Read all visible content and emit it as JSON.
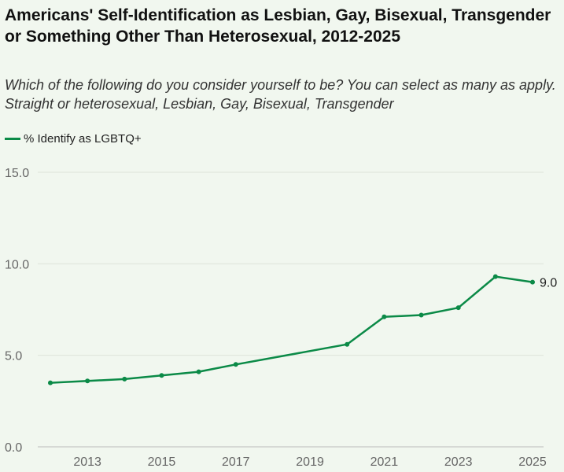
{
  "chart_data": {
    "type": "line",
    "title": "Americans' Self-Identification as Lesbian, Gay, Bisexual, Transgender or Something Other Than Heterosexual, 2012-2025",
    "subtitle": "Which of the following do you consider yourself to be? You can select as many as apply. Straight or heterosexual, Lesbian, Gay, Bisexual, Transgender",
    "xlabel": "",
    "ylabel": "",
    "ylim": [
      0,
      15
    ],
    "xlim": [
      2012,
      2025
    ],
    "yticks": [
      "0.0",
      "5.0",
      "10.0",
      "15.0"
    ],
    "ytick_values": [
      0,
      5,
      10,
      15
    ],
    "xticks": [
      "2013",
      "2015",
      "2017",
      "2019",
      "2021",
      "2023",
      "2025"
    ],
    "xtick_values": [
      2013,
      2015,
      2017,
      2019,
      2021,
      2023,
      2025
    ],
    "grid": true,
    "legend_position": "top-left",
    "series": [
      {
        "name": "% Identify as LGBTQ+",
        "color": "#0b8a47",
        "x": [
          2012,
          2013,
          2014,
          2015,
          2016,
          2017,
          2020,
          2021,
          2022,
          2023,
          2024,
          2025
        ],
        "values": [
          3.5,
          3.6,
          3.7,
          3.9,
          4.1,
          4.5,
          5.6,
          7.1,
          7.2,
          7.6,
          9.3,
          9.0
        ],
        "end_label": "9.0"
      }
    ]
  }
}
